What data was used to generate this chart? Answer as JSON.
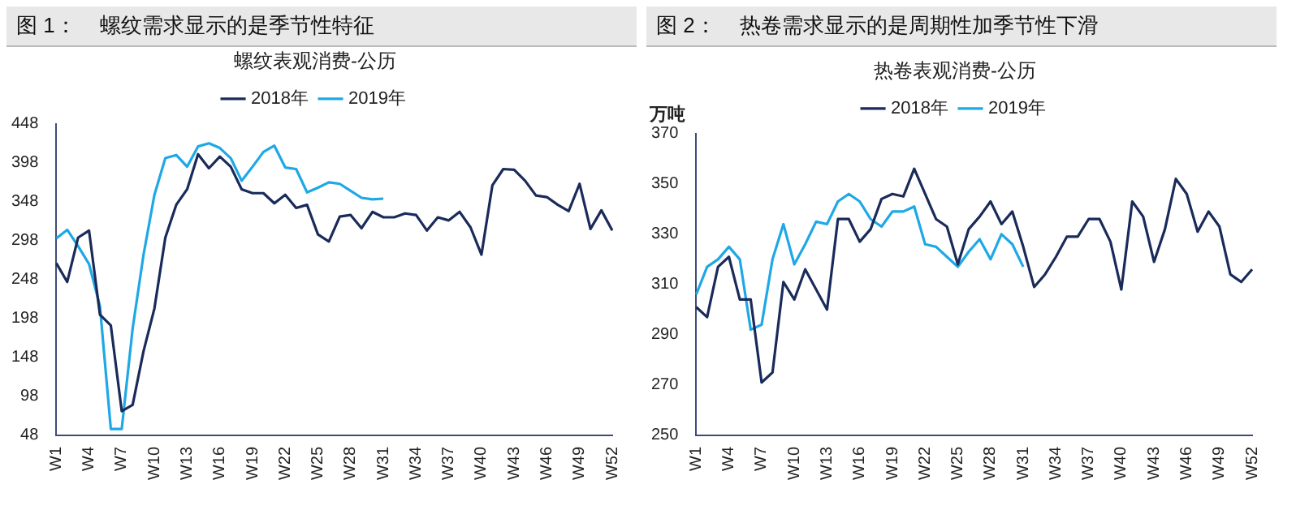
{
  "chart_data": [
    {
      "type": "line",
      "title": "图 1：    螺纹需求显示的是季节性特征",
      "subtitle": "螺纹表观消费-公历",
      "categories": [
        "W1",
        null,
        null,
        "W4",
        null,
        null,
        "W7",
        null,
        null,
        "W10",
        null,
        null,
        "W13",
        null,
        null,
        "W16",
        null,
        null,
        "W19",
        null,
        null,
        "W22",
        null,
        null,
        "W25",
        null,
        null,
        "W28",
        null,
        null,
        "W31",
        null,
        null,
        "W34",
        null,
        null,
        "W37",
        null,
        null,
        "W40",
        null,
        null,
        "W43",
        null,
        null,
        "W46",
        null,
        null,
        "W49",
        null,
        null,
        "W52"
      ],
      "series": [
        {
          "name": "2018年",
          "color": "#1a2b5a",
          "values": [
            269,
            245,
            302,
            311,
            203,
            189,
            79,
            87,
            156,
            211,
            302,
            344,
            364,
            409,
            391,
            406,
            393,
            364,
            359,
            359,
            346,
            357,
            340,
            344,
            306,
            297,
            329,
            331,
            314,
            335,
            328,
            328,
            333,
            331,
            311,
            328,
            324,
            335,
            315,
            280,
            369,
            390,
            389,
            375,
            356,
            354,
            344,
            336,
            371,
            313,
            337,
            311
          ]
        },
        {
          "name": "2019年",
          "color": "#1ea8e6",
          "values": [
            301,
            312,
            291,
            268,
            214,
            56,
            56,
            185,
            280,
            357,
            404,
            408,
            393,
            419,
            423,
            417,
            404,
            375,
            393,
            412,
            420,
            392,
            390,
            360,
            366,
            373,
            371,
            362,
            353,
            351,
            352,
            null,
            null,
            null,
            null,
            null,
            null,
            null,
            null,
            null,
            null,
            null,
            null,
            null,
            null,
            null,
            null,
            null,
            null,
            null,
            null,
            null
          ]
        }
      ],
      "ylim": [
        48,
        448
      ],
      "yticks": [
        48,
        98,
        148,
        198,
        248,
        298,
        348,
        398,
        448
      ],
      "grid": false,
      "legend": "top",
      "marker": "none",
      "line_style": "solid"
    },
    {
      "type": "line",
      "title": "图 2：    热卷需求显示的是周期性加季节性下滑",
      "subtitle": "热卷表观消费-公历",
      "ylabel": "万吨",
      "categories": [
        "W1",
        null,
        null,
        "W4",
        null,
        null,
        "W7",
        null,
        null,
        "W10",
        null,
        null,
        "W13",
        null,
        null,
        "W16",
        null,
        null,
        "W19",
        null,
        null,
        "W22",
        null,
        null,
        "W25",
        null,
        null,
        "W28",
        null,
        null,
        "W31",
        null,
        null,
        "W34",
        null,
        null,
        "W37",
        null,
        null,
        "W40",
        null,
        null,
        "W43",
        null,
        null,
        "W46",
        null,
        null,
        "W49",
        null,
        null,
        "W52"
      ],
      "series": [
        {
          "name": "2018年",
          "color": "#1a2b5a",
          "values": [
            301,
            297,
            317,
            321,
            304,
            304,
            271,
            275,
            311,
            304,
            316,
            308,
            300,
            336,
            336,
            327,
            332,
            344,
            346,
            345,
            356,
            346,
            336,
            333,
            318,
            332,
            337,
            343,
            334,
            339,
            325,
            309,
            314,
            321,
            329,
            329,
            336,
            336,
            327,
            308,
            343,
            337,
            319,
            332,
            352,
            346,
            331,
            339,
            333,
            314,
            311,
            316
          ]
        },
        {
          "name": "2019年",
          "color": "#1ea8e6",
          "values": [
            306,
            317,
            320,
            325,
            320,
            292,
            294,
            320,
            334,
            318,
            326,
            335,
            334,
            343,
            346,
            343,
            336,
            333,
            339,
            339,
            341,
            326,
            325,
            321,
            317,
            323,
            328,
            320,
            330,
            326,
            317,
            null,
            null,
            null,
            null,
            null,
            null,
            null,
            null,
            null,
            null,
            null,
            null,
            null,
            null,
            null,
            null,
            null,
            null,
            null,
            null,
            null
          ]
        }
      ],
      "ylim": [
        250,
        370
      ],
      "yticks": [
        250,
        270,
        290,
        310,
        330,
        350,
        370
      ],
      "grid": false,
      "legend": "top",
      "marker": "none",
      "line_style": "solid"
    }
  ]
}
